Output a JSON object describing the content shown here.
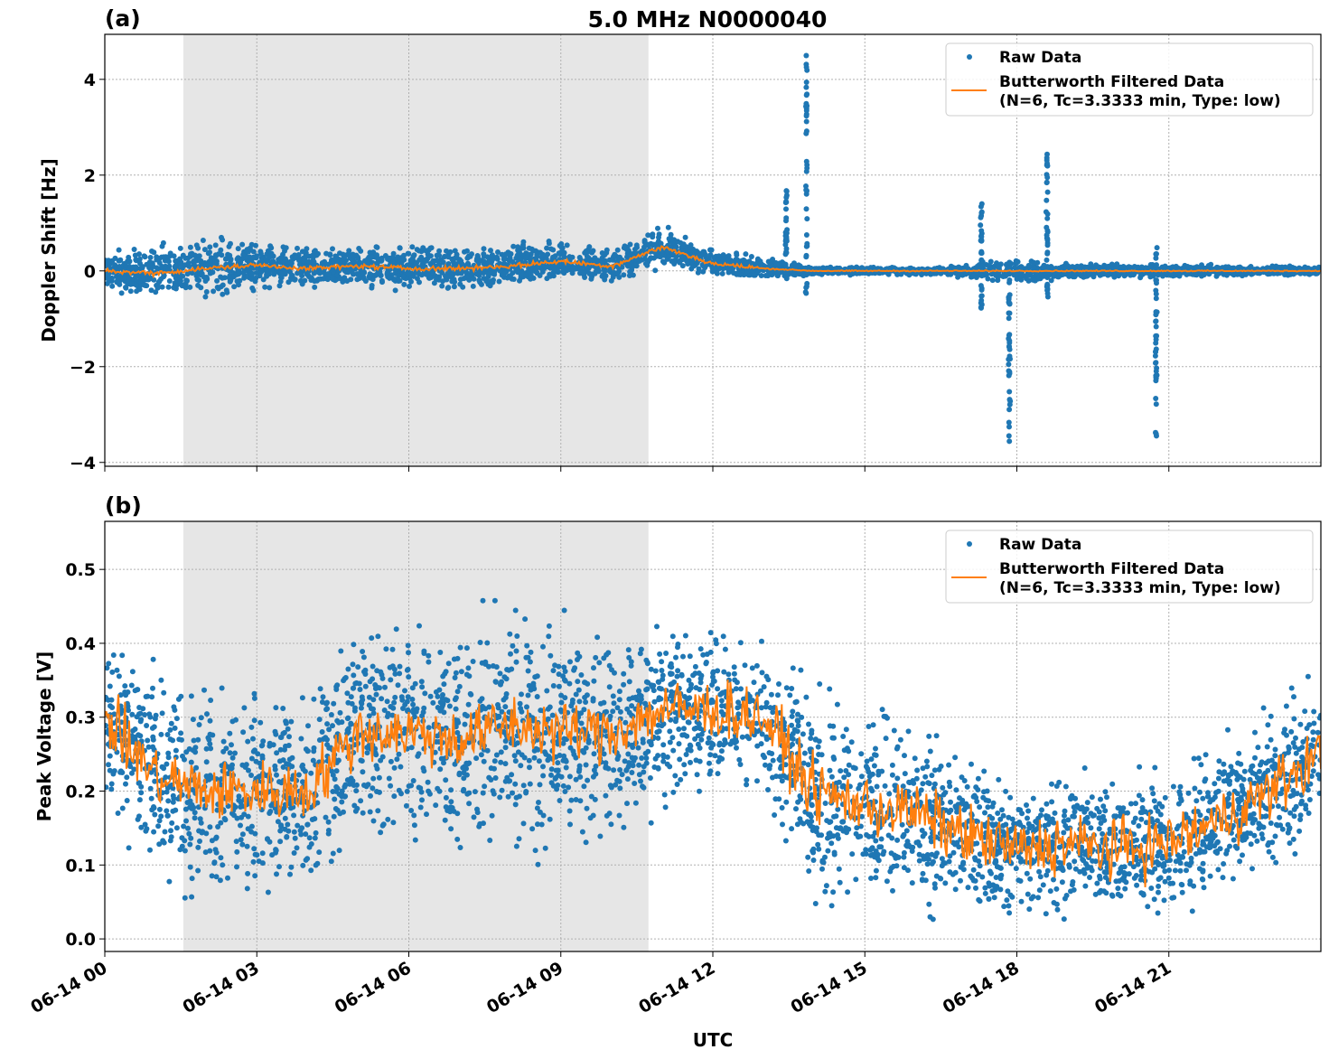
{
  "title": "5.0 MHz N0000040",
  "colors": {
    "raw": "#1f77b4",
    "filtered": "#ff7f0e",
    "shade": "#e6e6e6"
  },
  "legend": {
    "raw_label": "Raw Data",
    "filtered_label_line1": "Butterworth Filtered Data",
    "filtered_label_line2": "(N=6, Tc=3.3333 min, Type: low)",
    "placement": "top-right"
  },
  "chart_data": [
    {
      "type": "scatter",
      "panel_label": "(a)",
      "ylabel": "Doppler Shift [Hz]",
      "xlabel": "",
      "xlim_hours": [
        0,
        24
      ],
      "ylim": [
        -4.08,
        4.94
      ],
      "yticks": [
        -4,
        -2,
        0,
        2,
        4
      ],
      "ytick_labels": [
        "−4",
        "−2",
        "0",
        "2",
        "4"
      ],
      "grid": true,
      "shaded_span_hours": [
        1.55,
        10.73
      ],
      "hours": [
        0,
        1,
        2,
        3,
        4,
        5,
        6,
        7,
        8,
        9,
        10,
        11,
        12,
        13,
        14,
        15,
        16,
        17,
        18,
        19,
        20,
        21,
        22,
        23,
        24
      ],
      "filtered_mean": [
        0,
        -0.05,
        0.05,
        0.12,
        0.05,
        0.1,
        0.05,
        0.05,
        0.1,
        0.2,
        0.1,
        0.5,
        0.15,
        0.05,
        0,
        0,
        0,
        0,
        0,
        0,
        0,
        0,
        0,
        0,
        0
      ],
      "raw_low": [
        -0.5,
        -0.8,
        -0.8,
        -0.6,
        -0.6,
        -0.6,
        -0.7,
        -0.6,
        -0.5,
        -0.4,
        -0.3,
        0.0,
        -0.05,
        -0.1,
        -0.1,
        -0.1,
        -0.1,
        -0.15,
        -0.3,
        -0.2,
        -0.2,
        -0.15,
        -0.15,
        -0.15,
        -0.15
      ],
      "raw_high": [
        0.4,
        0.6,
        0.8,
        0.7,
        0.5,
        0.5,
        0.5,
        0.5,
        0.6,
        0.7,
        0.6,
        1.1,
        0.6,
        0.5,
        0.1,
        0.1,
        0.1,
        0.15,
        0.4,
        0.2,
        0.15,
        0.15,
        0.15,
        0.1,
        0.1
      ],
      "spikes": [
        [
          13.85,
          -0.5,
          4.5
        ],
        [
          13.45,
          -0.2,
          1.7
        ],
        [
          17.85,
          -3.7,
          0.3
        ],
        [
          18.6,
          -0.8,
          2.5
        ],
        [
          20.75,
          -3.6,
          0.5
        ],
        [
          17.3,
          -0.8,
          1.4
        ]
      ]
    },
    {
      "type": "scatter",
      "panel_label": "(b)",
      "ylabel": "Peak Voltage [V]",
      "xlabel": "UTC",
      "xlim_hours": [
        0,
        24
      ],
      "ylim": [
        -0.017,
        0.565
      ],
      "yticks": [
        0.0,
        0.1,
        0.2,
        0.3,
        0.4,
        0.5
      ],
      "ytick_labels": [
        "0.0",
        "0.1",
        "0.2",
        "0.3",
        "0.4",
        "0.5"
      ],
      "grid": true,
      "shaded_span_hours": [
        1.55,
        10.73
      ],
      "xtick_labels": [
        "06-14 00",
        "06-14 03",
        "06-14 06",
        "06-14 09",
        "06-14 12",
        "06-14 15",
        "06-14 18",
        "06-14 21"
      ],
      "xtick_hours": [
        0,
        3,
        6,
        9,
        12,
        15,
        18,
        21
      ],
      "hours": [
        0,
        1,
        2,
        3,
        4,
        5,
        6,
        7,
        8,
        9,
        10,
        11,
        12,
        13,
        14,
        15,
        16,
        17,
        18,
        19,
        20,
        21,
        22,
        23,
        24
      ],
      "filtered_mean": [
        0.3,
        0.22,
        0.2,
        0.2,
        0.2,
        0.28,
        0.28,
        0.27,
        0.29,
        0.28,
        0.28,
        0.31,
        0.31,
        0.3,
        0.2,
        0.18,
        0.17,
        0.14,
        0.12,
        0.13,
        0.12,
        0.13,
        0.16,
        0.2,
        0.25
      ],
      "raw_low": [
        0.15,
        0.05,
        0.03,
        0.06,
        0.06,
        0.1,
        0.1,
        0.06,
        0.1,
        0.08,
        0.08,
        0.15,
        0.2,
        0.15,
        0.02,
        0.03,
        0.03,
        0.02,
        0.02,
        0.02,
        0.02,
        0.02,
        0.03,
        0.05,
        0.1
      ],
      "raw_high": [
        0.42,
        0.4,
        0.42,
        0.42,
        0.4,
        0.47,
        0.47,
        0.46,
        0.5,
        0.48,
        0.47,
        0.46,
        0.45,
        0.44,
        0.38,
        0.36,
        0.35,
        0.3,
        0.27,
        0.27,
        0.25,
        0.25,
        0.3,
        0.35,
        0.4
      ],
      "spikes": []
    }
  ]
}
